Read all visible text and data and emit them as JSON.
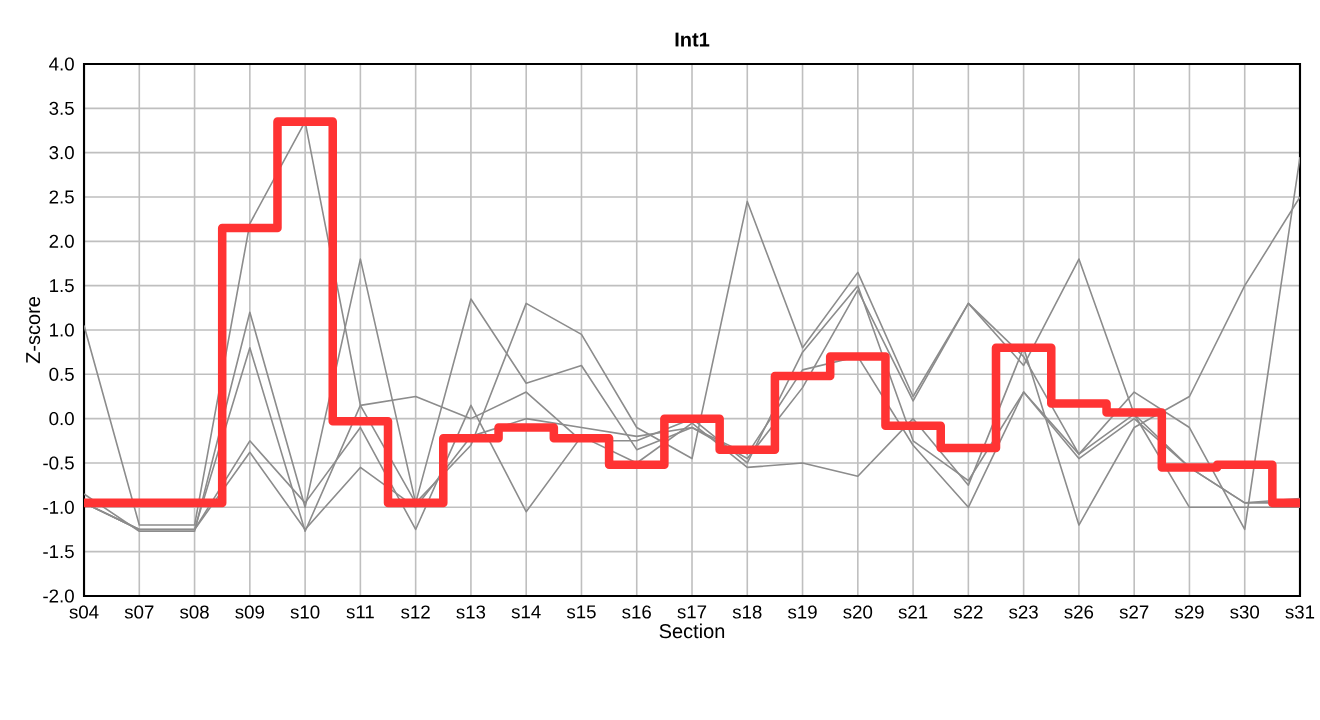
{
  "chart_data": {
    "type": "line",
    "title": "Int1",
    "xlabel": "Section",
    "ylabel": "Z-score",
    "categories": [
      "s04",
      "s07",
      "s08",
      "s09",
      "s10",
      "s11",
      "s12",
      "s13",
      "s14",
      "s15",
      "s16",
      "s17",
      "s18",
      "s19",
      "s20",
      "s21",
      "s22",
      "s23",
      "s26",
      "s27",
      "s29",
      "s30",
      "s31"
    ],
    "ylim": [
      -2.0,
      4.0
    ],
    "yticks": [
      {
        "value": -2.0,
        "label": "-2.0"
      },
      {
        "value": -1.5,
        "label": "-1.5"
      },
      {
        "value": -1.0,
        "label": "-1.0"
      },
      {
        "value": -0.5,
        "label": "-0.5"
      },
      {
        "value": 0.0,
        "label": "0.0"
      },
      {
        "value": 0.5,
        "label": "0.5"
      },
      {
        "value": 1.0,
        "label": "1.0"
      },
      {
        "value": 1.5,
        "label": "1.5"
      },
      {
        "value": 2.0,
        "label": "2.0"
      },
      {
        "value": 2.5,
        "label": "2.5"
      },
      {
        "value": 3.0,
        "label": "3.0"
      },
      {
        "value": 3.5,
        "label": "3.5"
      },
      {
        "value": 4.0,
        "label": "4.0"
      }
    ],
    "grid": true,
    "series": [
      {
        "color": "#8c8c8c",
        "values": [
          1.05,
          -1.2,
          -1.2,
          2.2,
          3.35,
          0.15,
          -0.95,
          -0.3,
          1.3,
          0.95,
          -0.1,
          -0.45,
          2.45,
          0.8,
          1.65,
          0.25,
          1.3,
          0.7,
          -0.4,
          0.3,
          -0.1,
          -1.25,
          2.95
        ]
      },
      {
        "color": "#8c8c8c",
        "values": [
          -0.85,
          -1.27,
          -1.27,
          1.2,
          -1.0,
          1.8,
          -0.95,
          1.35,
          0.4,
          0.6,
          -0.35,
          -0.1,
          -0.45,
          0.35,
          1.45,
          0.2,
          1.3,
          0.6,
          1.8,
          0.05,
          -1.0,
          -1.0,
          -1.0
        ]
      },
      {
        "color": "#8c8c8c",
        "values": [
          -0.95,
          -1.25,
          -1.25,
          0.8,
          -1.27,
          0.15,
          0.25,
          0.0,
          0.3,
          -0.25,
          -0.25,
          0.0,
          -0.5,
          0.75,
          1.5,
          -0.25,
          -0.7,
          0.3,
          -0.4,
          0.05,
          -0.55,
          -0.95,
          -0.9
        ]
      },
      {
        "color": "#8c8c8c",
        "values": [
          -0.95,
          -1.25,
          -1.25,
          -0.25,
          -0.95,
          -0.1,
          -1.25,
          0.15,
          -1.05,
          -0.2,
          -0.5,
          -0.05,
          -0.55,
          -0.5,
          -0.65,
          0.0,
          -0.75,
          0.8,
          -1.2,
          -0.1,
          0.25,
          1.5,
          2.5
        ]
      },
      {
        "color": "#8c8c8c",
        "values": [
          -0.95,
          -1.25,
          -1.25,
          -0.38,
          -1.25,
          -0.55,
          -1.0,
          -0.2,
          0.0,
          -0.1,
          -0.2,
          -0.1,
          -0.4,
          0.55,
          0.7,
          -0.3,
          -1.0,
          0.3,
          -0.45,
          0.0,
          -0.55,
          -0.95,
          -0.95
        ]
      },
      {
        "type": "step",
        "color": "#ff3333",
        "values": [
          -0.95,
          -0.95,
          -0.95,
          2.15,
          3.35,
          -0.03,
          -0.95,
          -0.22,
          -0.1,
          -0.22,
          -0.52,
          0.0,
          -0.35,
          0.48,
          0.7,
          -0.08,
          -0.33,
          0.8,
          0.17,
          0.07,
          -0.55,
          -0.52,
          -0.95
        ]
      }
    ]
  }
}
